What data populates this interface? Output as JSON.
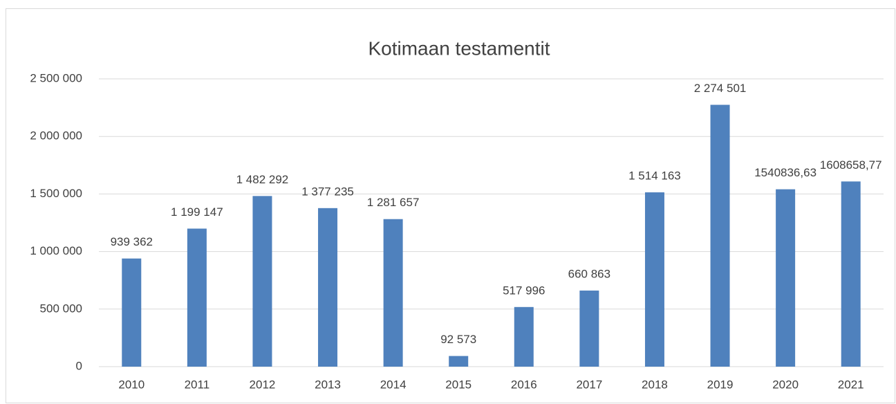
{
  "chart_data": {
    "type": "bar",
    "title": "Kotimaan testamentit",
    "categories": [
      "2010",
      "2011",
      "2012",
      "2013",
      "2014",
      "2015",
      "2016",
      "2017",
      "2018",
      "2019",
      "2020",
      "2021"
    ],
    "values": [
      939362,
      1199147,
      1482292,
      1377235,
      1281657,
      92573,
      517996,
      660863,
      1514163,
      2274501,
      1540836.63,
      1608658.77
    ],
    "value_labels": [
      "939 362",
      "1 199 147",
      "1 482 292",
      "1 377 235",
      "1 281 657",
      "92 573",
      "517 996",
      "660 863",
      "1 514 163",
      "2 274 501",
      "1540836,63",
      "1608658,77"
    ],
    "color": "#4f81bd",
    "ylim": [
      0,
      2500000
    ],
    "yticks": [
      0,
      {
        "value": 500000,
        "label": "500 000"
      },
      {
        "value": 1000000,
        "label": "1 000 000"
      },
      {
        "value": 1500000,
        "label": "1 500 000"
      },
      {
        "value": 2000000,
        "label": "2 000 000"
      },
      {
        "value": 2500000,
        "label": "2 500 000"
      }
    ],
    "grid": true
  }
}
